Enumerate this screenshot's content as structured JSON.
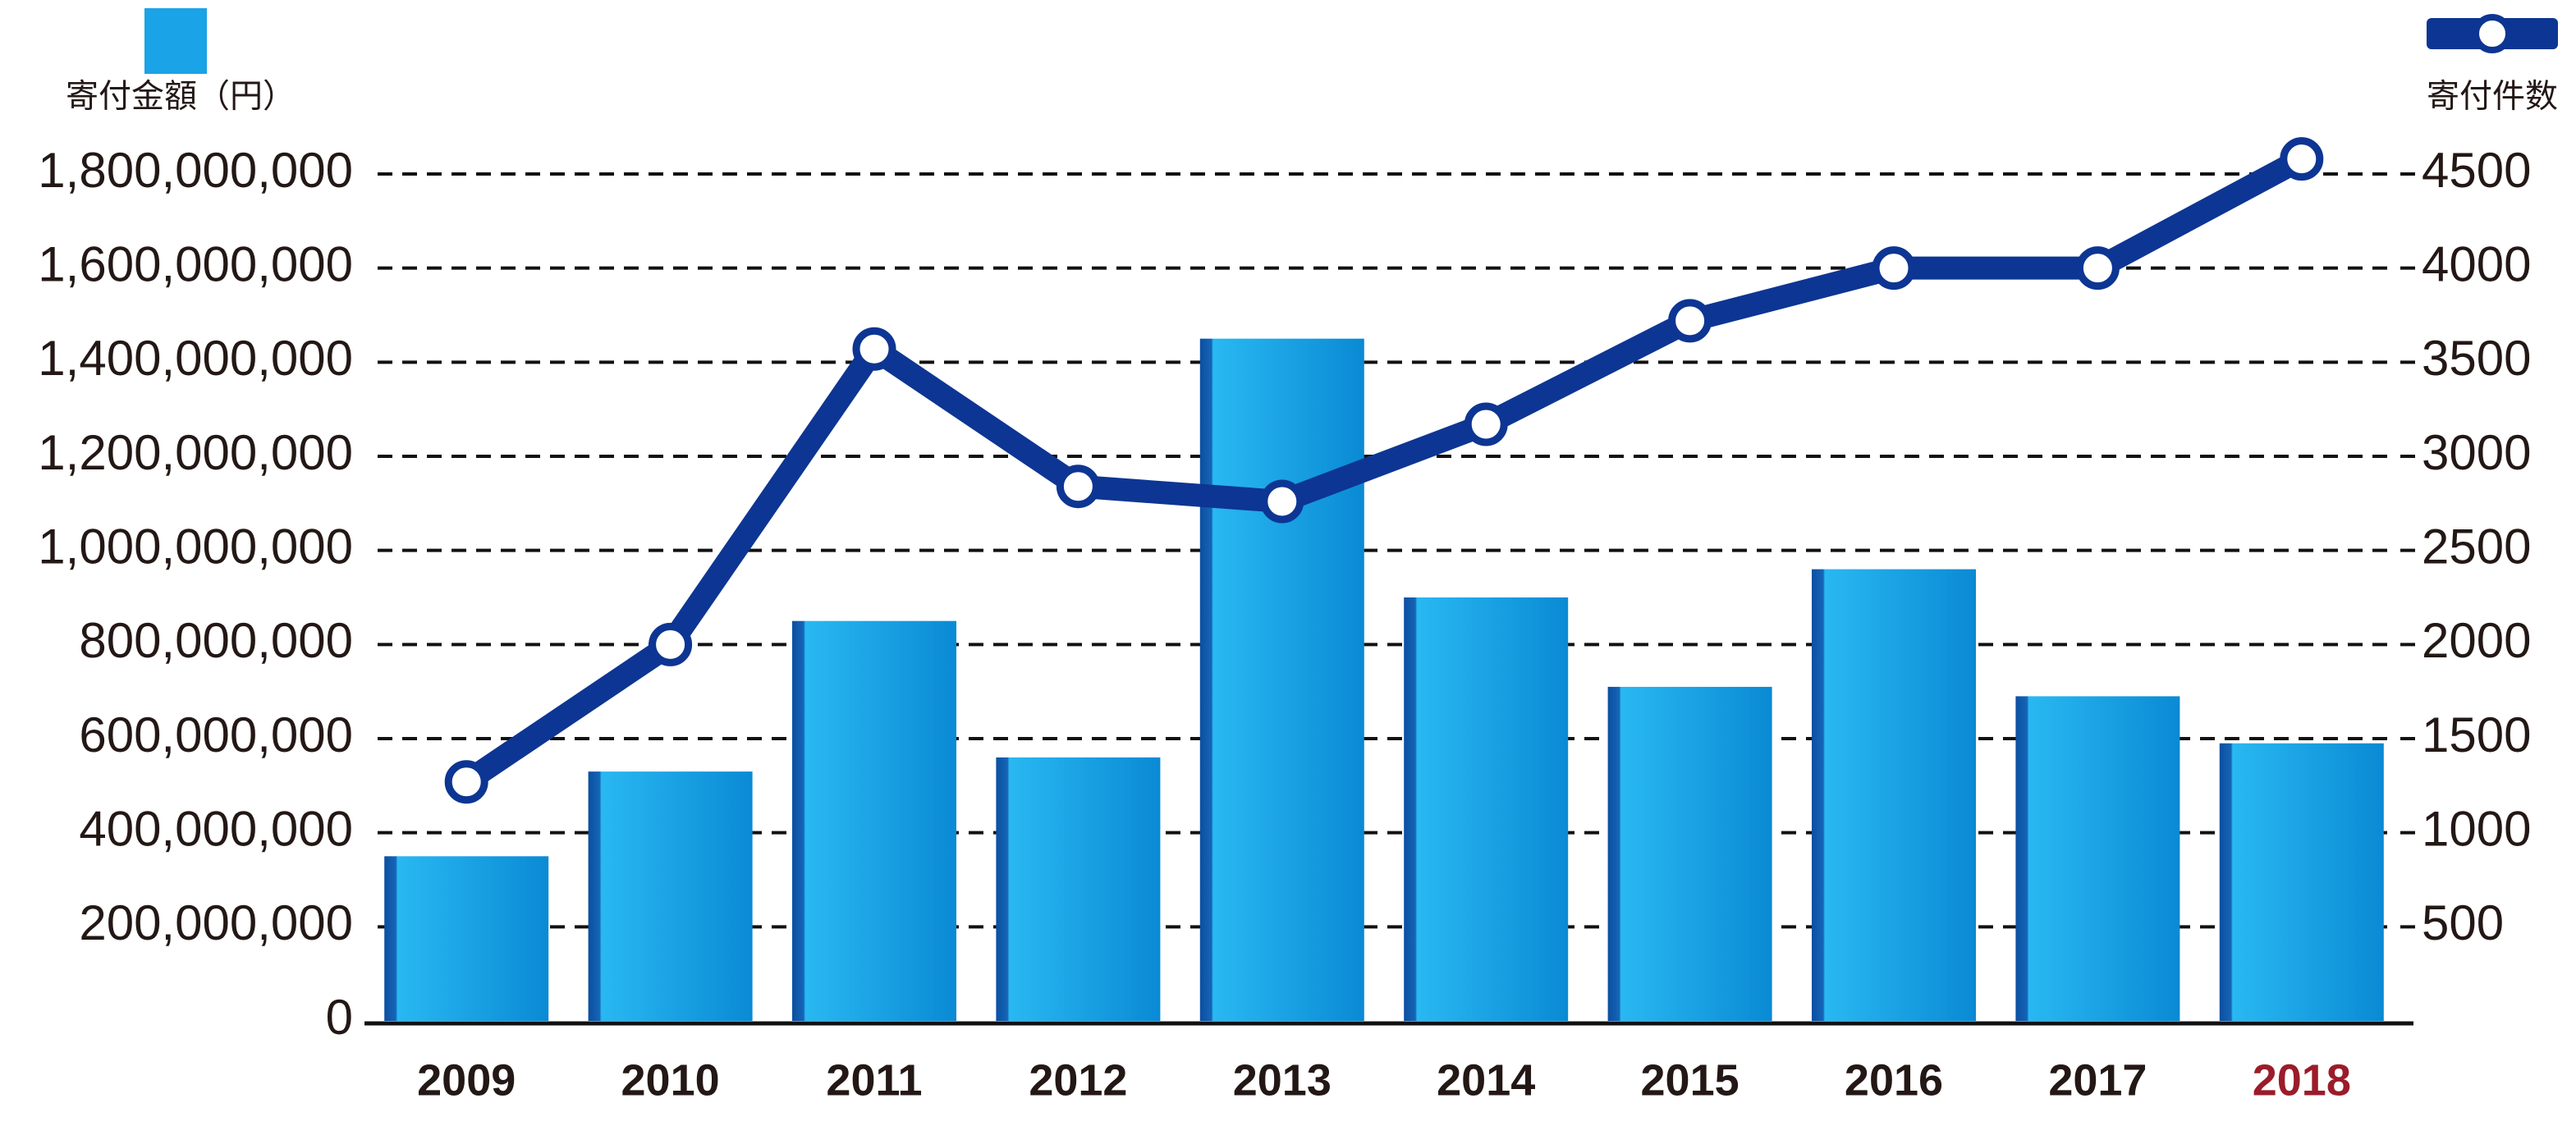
{
  "chart_data": {
    "type": "combo",
    "categories": [
      "2009",
      "2010",
      "2011",
      "2012",
      "2013",
      "2014",
      "2015",
      "2016",
      "2017",
      "2018"
    ],
    "category_label_colors": [
      "#231815",
      "#231815",
      "#231815",
      "#231815",
      "#231815",
      "#231815",
      "#231815",
      "#231815",
      "#231815",
      "#9b1c2a"
    ],
    "series": [
      {
        "name": "寄付金額（円）",
        "type": "bar",
        "color": "#1aa3e6",
        "values": [
          350000000,
          530000000,
          850000000,
          560000000,
          1450000000,
          900000000,
          710000000,
          960000000,
          690000000,
          590000000
        ]
      },
      {
        "name": "寄付件数",
        "type": "line",
        "axis": "y2",
        "color": "#0d3593",
        "values": [
          1270,
          2000,
          3570,
          2840,
          2760,
          3170,
          3720,
          4000,
          4000,
          4580
        ]
      }
    ],
    "ylim": [
      0,
      1800000000
    ],
    "yticks": [
      0,
      {
        "value": 200000000,
        "label": "200,000,000"
      },
      {
        "value": 400000000,
        "label": "400,000,000"
      },
      {
        "value": 600000000,
        "label": "600,000,000"
      },
      {
        "value": 800000000,
        "label": "800,000,000"
      },
      {
        "value": 1000000000,
        "label": "1,000,000,000"
      },
      {
        "value": 1200000000,
        "label": "1,200,000,000"
      },
      {
        "value": 1400000000,
        "label": "1,400,000,000"
      },
      {
        "value": 1600000000,
        "label": "1,600,000,000"
      },
      {
        "value": 1800000000,
        "label": "1,800,000,000"
      }
    ],
    "y2lim": [
      0,
      4500
    ],
    "y2ticks": [
      500,
      1000,
      1500,
      2000,
      2500,
      3000,
      3500,
      4000,
      4500
    ],
    "grid": true
  }
}
